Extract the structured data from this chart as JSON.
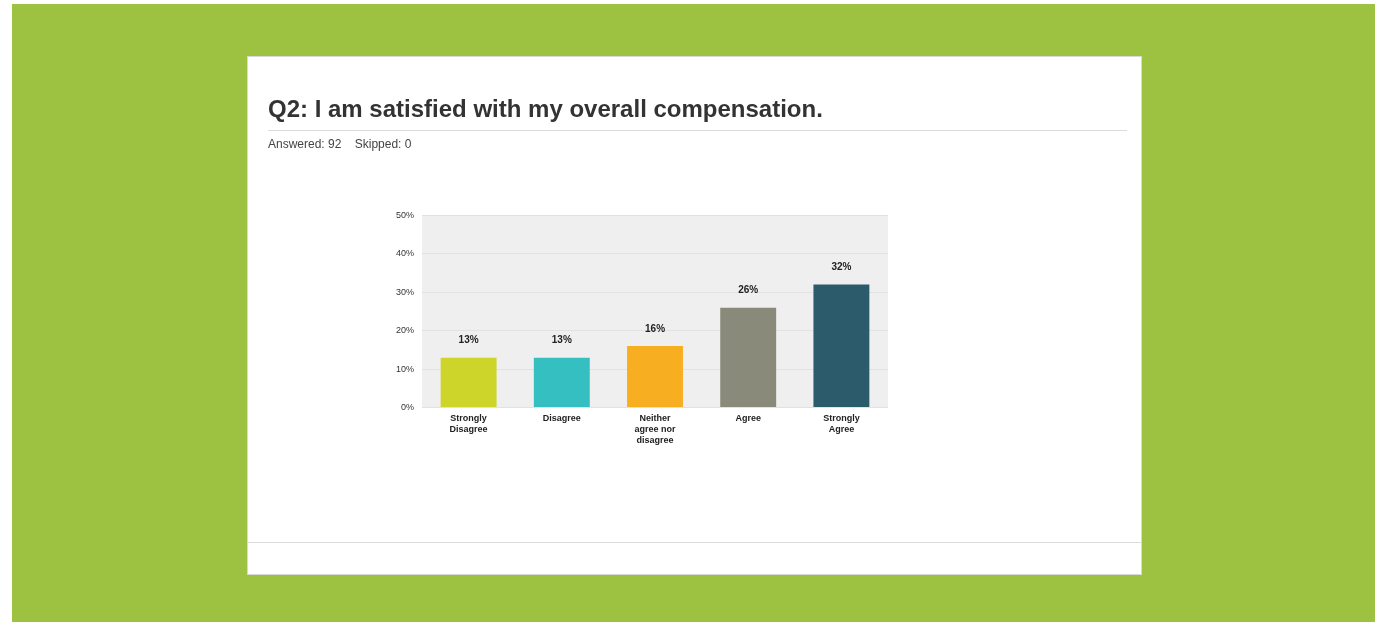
{
  "chart_data": {
    "type": "bar",
    "title": "Q2: I am satisfied with my overall compensation.",
    "subtitle": "Answered: 92    Skipped: 0",
    "categories": [
      "Strongly Disagree",
      "Disagree",
      "Neither agree nor disagree",
      "Agree",
      "Strongly Agree"
    ],
    "values": [
      13,
      13,
      16,
      26,
      32
    ],
    "colors": [
      "#cdd52a",
      "#35bfc1",
      "#f7af21",
      "#898a7a",
      "#2c5b6b"
    ],
    "value_labels": [
      "13%",
      "13%",
      "16%",
      "26%",
      "32%"
    ],
    "ylim": [
      0,
      50
    ],
    "yticks": [
      {
        "value": 0,
        "label": "0%"
      },
      {
        "value": 10,
        "label": "10%"
      },
      {
        "value": 20,
        "label": "20%"
      },
      {
        "value": 30,
        "label": "30%"
      },
      {
        "value": 40,
        "label": "40%"
      },
      {
        "value": 50,
        "label": "50%"
      }
    ],
    "grid": "y",
    "legend": false
  }
}
